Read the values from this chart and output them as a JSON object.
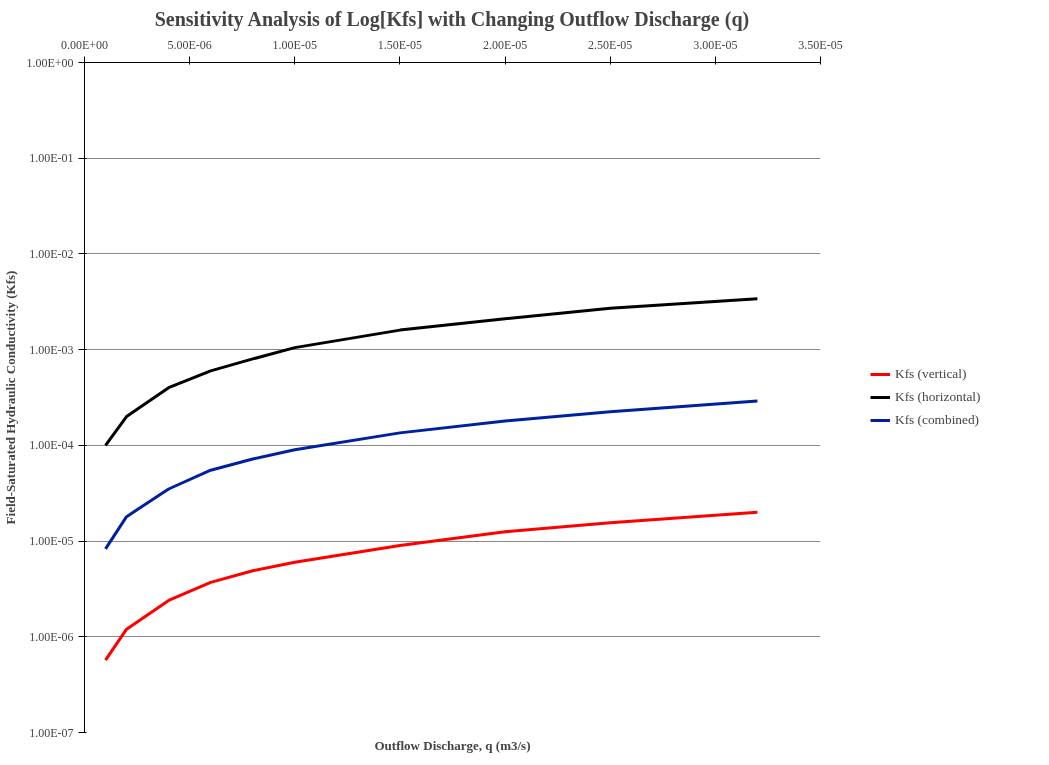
{
  "chart_data": {
    "type": "line",
    "title": "Sensitivity Analysis of Log[Kfs] with Changing Outflow Discharge (q)",
    "xlabel": "Outflow Discharge, q (m3/s)",
    "ylabel": "Field-Saturated Hydraulic Conductivity (Kfs)",
    "x": [
      1e-06,
      2e-06,
      4e-06,
      6e-06,
      8e-06,
      1e-05,
      1.5e-05,
      2e-05,
      2.5e-05,
      3.2e-05
    ],
    "series": [
      {
        "name": "Kfs (vertical)",
        "color": "#ff0000",
        "values": [
          5.7e-07,
          1.2e-06,
          2.4e-06,
          3.7e-06,
          4.9e-06,
          6e-06,
          9e-06,
          1.25e-05,
          1.55e-05,
          2e-05
        ]
      },
      {
        "name": "Kfs (horizontal)",
        "color": "#000000",
        "values": [
          0.0001,
          0.0002,
          0.0004,
          0.0006,
          0.0008,
          0.00105,
          0.0016,
          0.0021,
          0.0027,
          0.0034
        ]
      },
      {
        "name": "Kfs (combined)",
        "color": "#0020a0",
        "values": [
          8.3e-06,
          1.8e-05,
          3.5e-05,
          5.5e-05,
          7.2e-05,
          9e-05,
          0.000135,
          0.00018,
          0.000225,
          0.00029
        ]
      }
    ],
    "xlim": [
      0,
      3.5e-05
    ],
    "xticks": [
      {
        "value": 0,
        "label": "0.00E+00"
      },
      {
        "value": 5e-06,
        "label": "5.00E-06"
      },
      {
        "value": 1e-05,
        "label": "1.00E-05"
      },
      {
        "value": 1.5e-05,
        "label": "1.50E-05"
      },
      {
        "value": 2e-05,
        "label": "2.00E-05"
      },
      {
        "value": 2.5e-05,
        "label": "2.50E-05"
      },
      {
        "value": 3e-05,
        "label": "3.00E-05"
      },
      {
        "value": 3.5e-05,
        "label": "3.50E-05"
      }
    ],
    "ylim": [
      1e-07,
      1
    ],
    "yticks": [
      {
        "value": 1e-07,
        "label": "1.00E-07"
      },
      {
        "value": 1e-06,
        "label": "1.00E-06"
      },
      {
        "value": 1e-05,
        "label": "1.00E-05"
      },
      {
        "value": 0.0001,
        "label": "1.00E-04"
      },
      {
        "value": 0.001,
        "label": "1.00E-03"
      },
      {
        "value": 0.01,
        "label": "1.00E-02"
      },
      {
        "value": 0.1,
        "label": "1.00E-01"
      },
      {
        "value": 1,
        "label": "1.00E+00"
      }
    ],
    "log": "y",
    "grid": "y",
    "legend": "right",
    "marker": "none",
    "line_style": "solid"
  }
}
